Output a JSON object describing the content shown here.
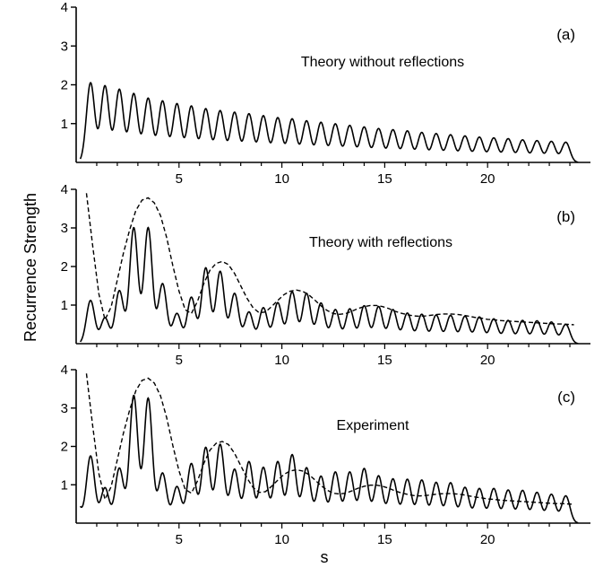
{
  "chart_data": {
    "type": "line",
    "xlabel": "s",
    "ylabel": "Recurrence  Strength",
    "xlim": [
      0,
      25
    ],
    "ylim": [
      0,
      4
    ],
    "x_ticks": [
      "5",
      "10",
      "15",
      "20"
    ],
    "y_ticks": [
      "1",
      "2",
      "3",
      "4"
    ],
    "panels": [
      {
        "letter": "(a)",
        "title": "Theory without reflections",
        "peak_x": [
          0.7,
          1.4,
          2.1,
          2.8,
          3.5,
          4.2,
          4.9,
          5.6,
          6.3,
          7.0,
          7.7,
          8.4,
          9.1,
          9.8,
          10.5,
          11.2,
          11.9,
          12.6,
          13.3,
          14.0,
          14.7,
          15.4,
          16.1,
          16.8,
          17.5,
          18.2,
          18.9,
          19.6,
          20.3,
          21.0,
          21.7,
          22.4,
          23.1,
          23.8
        ],
        "peak_y": [
          2.05,
          1.97,
          1.88,
          1.77,
          1.65,
          1.58,
          1.51,
          1.45,
          1.38,
          1.33,
          1.29,
          1.25,
          1.2,
          1.15,
          1.12,
          1.07,
          1.03,
          0.99,
          0.95,
          0.91,
          0.87,
          0.84,
          0.81,
          0.77,
          0.74,
          0.71,
          0.68,
          0.65,
          0.63,
          0.61,
          0.58,
          0.56,
          0.54,
          0.52
        ],
        "envelope_x": [],
        "envelope_y": []
      },
      {
        "letter": "(b)",
        "title": "Theory with reflections",
        "peak_x": [
          0.7,
          1.4,
          2.1,
          2.8,
          3.5,
          4.2,
          4.9,
          5.6,
          6.3,
          7.0,
          7.7,
          8.4,
          9.1,
          9.8,
          10.5,
          11.2,
          11.9,
          12.6,
          13.3,
          14.0,
          14.7,
          15.4,
          16.1,
          16.8,
          17.5,
          18.2,
          18.9,
          19.6,
          20.3,
          21.0,
          21.7,
          22.4,
          23.1,
          23.8
        ],
        "peak_y": [
          1.12,
          0.67,
          1.37,
          3.0,
          3.0,
          1.55,
          0.78,
          1.2,
          1.96,
          1.87,
          1.3,
          0.82,
          0.93,
          1.06,
          1.34,
          1.3,
          1.05,
          0.88,
          0.9,
          0.98,
          0.96,
          0.88,
          0.79,
          0.76,
          0.74,
          0.73,
          0.71,
          0.69,
          0.64,
          0.6,
          0.6,
          0.59,
          0.56,
          0.5
        ],
        "envelope_x": [
          0.5,
          0.8,
          1.1,
          1.4,
          1.7,
          2.0,
          2.3,
          2.6,
          2.9,
          3.2,
          3.5,
          3.8,
          4.1,
          4.4,
          4.7,
          5.0,
          5.3,
          5.6,
          5.9,
          6.2,
          6.5,
          6.8,
          7.1,
          7.4,
          7.7,
          8.0,
          8.3,
          8.6,
          8.9,
          9.2,
          9.5,
          9.8,
          10.1,
          10.4,
          10.7,
          11.0,
          11.3,
          11.6,
          11.9,
          12.2,
          12.5,
          12.8,
          13.1,
          13.4,
          13.7,
          14.0,
          14.3,
          14.6,
          14.9,
          15.2,
          15.5,
          15.8,
          16.1,
          16.4,
          16.7,
          17.0,
          17.3,
          17.6,
          17.9,
          18.2,
          18.5,
          18.8,
          19.1,
          19.4,
          19.7,
          20.0,
          20.3,
          20.6,
          20.9,
          21.2,
          21.5,
          21.8,
          22.1,
          22.4,
          22.7,
          23.0,
          23.3,
          23.6,
          23.9,
          24.2
        ],
        "envelope_y": [
          3.9,
          2.55,
          1.3,
          0.62,
          0.95,
          1.65,
          2.35,
          2.95,
          3.45,
          3.72,
          3.78,
          3.65,
          3.32,
          2.75,
          2.02,
          1.36,
          0.88,
          0.78,
          1.1,
          1.55,
          1.9,
          2.08,
          2.13,
          2.05,
          1.82,
          1.5,
          1.18,
          0.93,
          0.8,
          0.82,
          0.96,
          1.12,
          1.27,
          1.36,
          1.39,
          1.36,
          1.27,
          1.13,
          0.98,
          0.86,
          0.78,
          0.76,
          0.78,
          0.84,
          0.91,
          0.96,
          0.99,
          0.99,
          0.96,
          0.91,
          0.84,
          0.79,
          0.75,
          0.72,
          0.71,
          0.72,
          0.74,
          0.76,
          0.77,
          0.77,
          0.76,
          0.74,
          0.71,
          0.68,
          0.66,
          0.63,
          0.62,
          0.6,
          0.59,
          0.58,
          0.57,
          0.56,
          0.55,
          0.54,
          0.53,
          0.52,
          0.51,
          0.51,
          0.5,
          0.49
        ]
      },
      {
        "letter": "(c)",
        "title": "Experiment",
        "peak_x": [
          0.0,
          0.7,
          1.4,
          2.1,
          2.8,
          3.5,
          4.2,
          4.9,
          5.6,
          6.3,
          7.0,
          7.7,
          8.4,
          9.1,
          9.8,
          10.5,
          11.2,
          11.9,
          12.6,
          13.3,
          14.0,
          14.7,
          15.4,
          16.1,
          16.8,
          17.5,
          18.2,
          18.9,
          19.6,
          20.3,
          21.0,
          21.7,
          22.4,
          23.1,
          23.8
        ],
        "peak_y": [
          0.6,
          1.75,
          0.92,
          1.43,
          3.32,
          3.25,
          1.3,
          0.95,
          1.55,
          1.97,
          2.05,
          1.4,
          1.6,
          1.45,
          1.6,
          1.78,
          1.44,
          1.22,
          1.33,
          1.33,
          1.42,
          1.23,
          1.15,
          1.14,
          1.12,
          1.06,
          1.05,
          0.93,
          0.9,
          0.9,
          0.86,
          0.85,
          0.8,
          0.75,
          0.71
        ],
        "envelope_x": [
          0.5,
          0.8,
          1.1,
          1.4,
          1.7,
          2.0,
          2.3,
          2.6,
          2.9,
          3.2,
          3.5,
          3.8,
          4.1,
          4.4,
          4.7,
          5.0,
          5.3,
          5.6,
          5.9,
          6.2,
          6.5,
          6.8,
          7.1,
          7.4,
          7.7,
          8.0,
          8.3,
          8.6,
          8.9,
          9.2,
          9.5,
          9.8,
          10.1,
          10.4,
          10.7,
          11.0,
          11.3,
          11.6,
          11.9,
          12.2,
          12.5,
          12.8,
          13.1,
          13.4,
          13.7,
          14.0,
          14.3,
          14.6,
          14.9,
          15.2,
          15.5,
          15.8,
          16.1,
          16.4,
          16.7,
          17.0,
          17.3,
          17.6,
          17.9,
          18.2,
          18.5,
          18.8,
          19.1,
          19.4,
          19.7,
          20.0,
          20.3,
          20.6,
          20.9,
          21.2,
          21.5,
          21.8,
          22.1,
          22.4,
          22.7,
          23.0,
          23.3,
          23.6,
          23.9,
          24.2
        ],
        "envelope_y": [
          3.9,
          2.55,
          1.3,
          0.62,
          0.95,
          1.65,
          2.35,
          2.95,
          3.45,
          3.72,
          3.78,
          3.65,
          3.32,
          2.75,
          2.02,
          1.36,
          0.88,
          0.78,
          1.1,
          1.55,
          1.9,
          2.08,
          2.13,
          2.05,
          1.82,
          1.5,
          1.18,
          0.93,
          0.8,
          0.82,
          0.96,
          1.12,
          1.27,
          1.36,
          1.39,
          1.36,
          1.27,
          1.13,
          0.98,
          0.86,
          0.78,
          0.76,
          0.78,
          0.84,
          0.91,
          0.96,
          0.99,
          0.99,
          0.96,
          0.91,
          0.84,
          0.79,
          0.75,
          0.72,
          0.71,
          0.72,
          0.74,
          0.76,
          0.77,
          0.77,
          0.76,
          0.74,
          0.71,
          0.68,
          0.66,
          0.63,
          0.62,
          0.6,
          0.59,
          0.58,
          0.57,
          0.56,
          0.55,
          0.54,
          0.53,
          0.52,
          0.51,
          0.51,
          0.5,
          0.49
        ]
      }
    ]
  }
}
